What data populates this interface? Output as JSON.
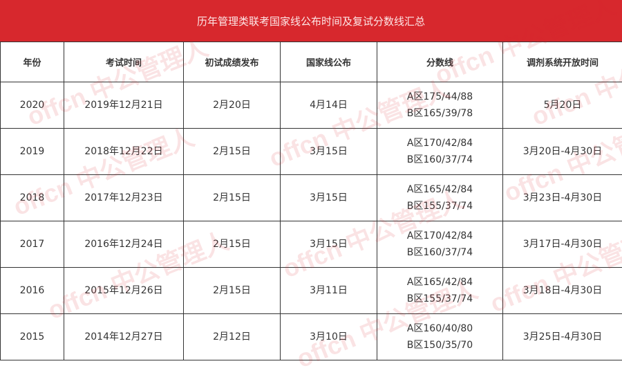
{
  "title": "历年管理类联考国家线公布时间及复试分数线汇总",
  "headers": [
    "年份",
    "考试时间",
    "初试成绩发布",
    "国家线公布",
    "分数线",
    "调剂系统开放时间"
  ],
  "rows": [
    {
      "year": "2020",
      "exam": "2019年12月21日",
      "score": "2月20日",
      "national": "4月14日",
      "lineA": "A区175/44/88",
      "lineB": "B区165/39/78",
      "adjust": "5月20日"
    },
    {
      "year": "2019",
      "exam": "2018年12月22日",
      "score": "2月15日",
      "national": "3月15日",
      "lineA": "A区170/42/84",
      "lineB": "B区160/37/74",
      "adjust": "3月20日-4月30日"
    },
    {
      "year": "2018",
      "exam": "2017年12月23日",
      "score": "2月15日",
      "national": "3月15日",
      "lineA": "A区165/42/84",
      "lineB": "B区155/37/74",
      "adjust": "3月23日-4月30日"
    },
    {
      "year": "2017",
      "exam": "2016年12月24日",
      "score": "2月15日",
      "national": "3月15日",
      "lineA": "A区170/42/84",
      "lineB": "B区160/37/74",
      "adjust": "3月17日-4月30日"
    },
    {
      "year": "2016",
      "exam": "2015年12月26日",
      "score": "2月15日",
      "national": "3月11日",
      "lineA": "A区165/42/84",
      "lineB": "B区155/37/74",
      "adjust": "3月18日-4月30日"
    },
    {
      "year": "2015",
      "exam": "2014年12月27日",
      "score": "2月12日",
      "national": "3月10日",
      "lineA": "A区160/40/80",
      "lineB": "B区150/35/70",
      "adjust": "3月25日-4月30日"
    }
  ],
  "watermark": "offcn 中公管理人",
  "colors": {
    "header_bg": "#d7282d"
  }
}
